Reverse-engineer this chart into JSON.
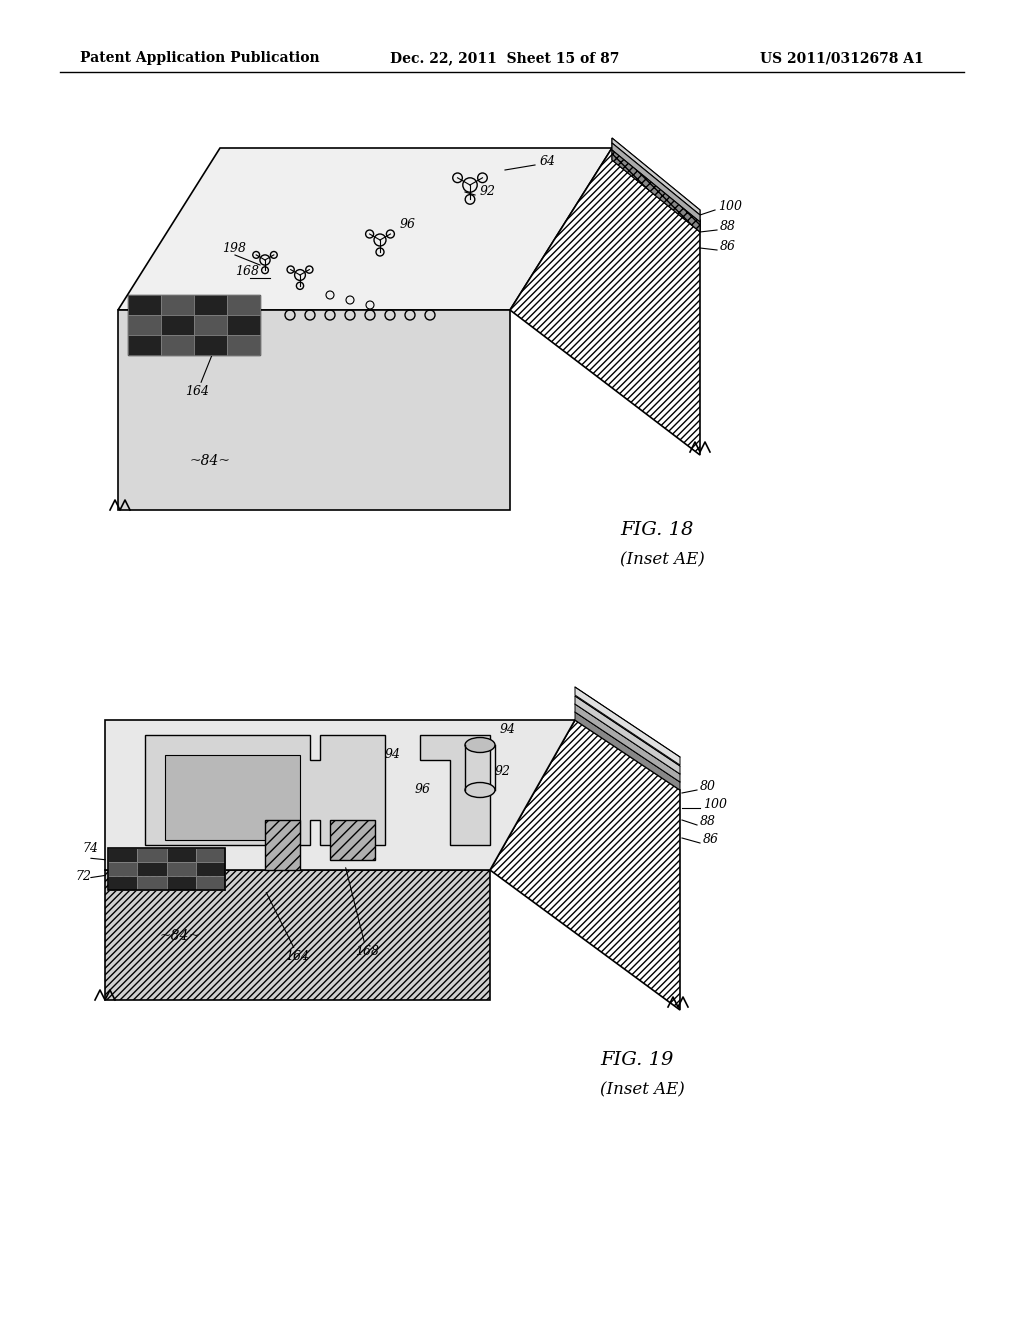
{
  "header_left": "Patent Application Publication",
  "header_middle": "Dec. 22, 2011  Sheet 15 of 87",
  "header_right": "US 2011/0312678 A1",
  "fig18_label": "FIG. 18",
  "fig18_sublabel": "(Inset AE)",
  "fig19_label": "FIG. 19",
  "fig19_sublabel": "(Inset AE)",
  "bg_color": "#ffffff",
  "line_color": "#000000",
  "hatch_color": "#555555",
  "dark_fill": "#222222",
  "light_fill": "#e8e8e8",
  "mid_fill": "#cccccc"
}
